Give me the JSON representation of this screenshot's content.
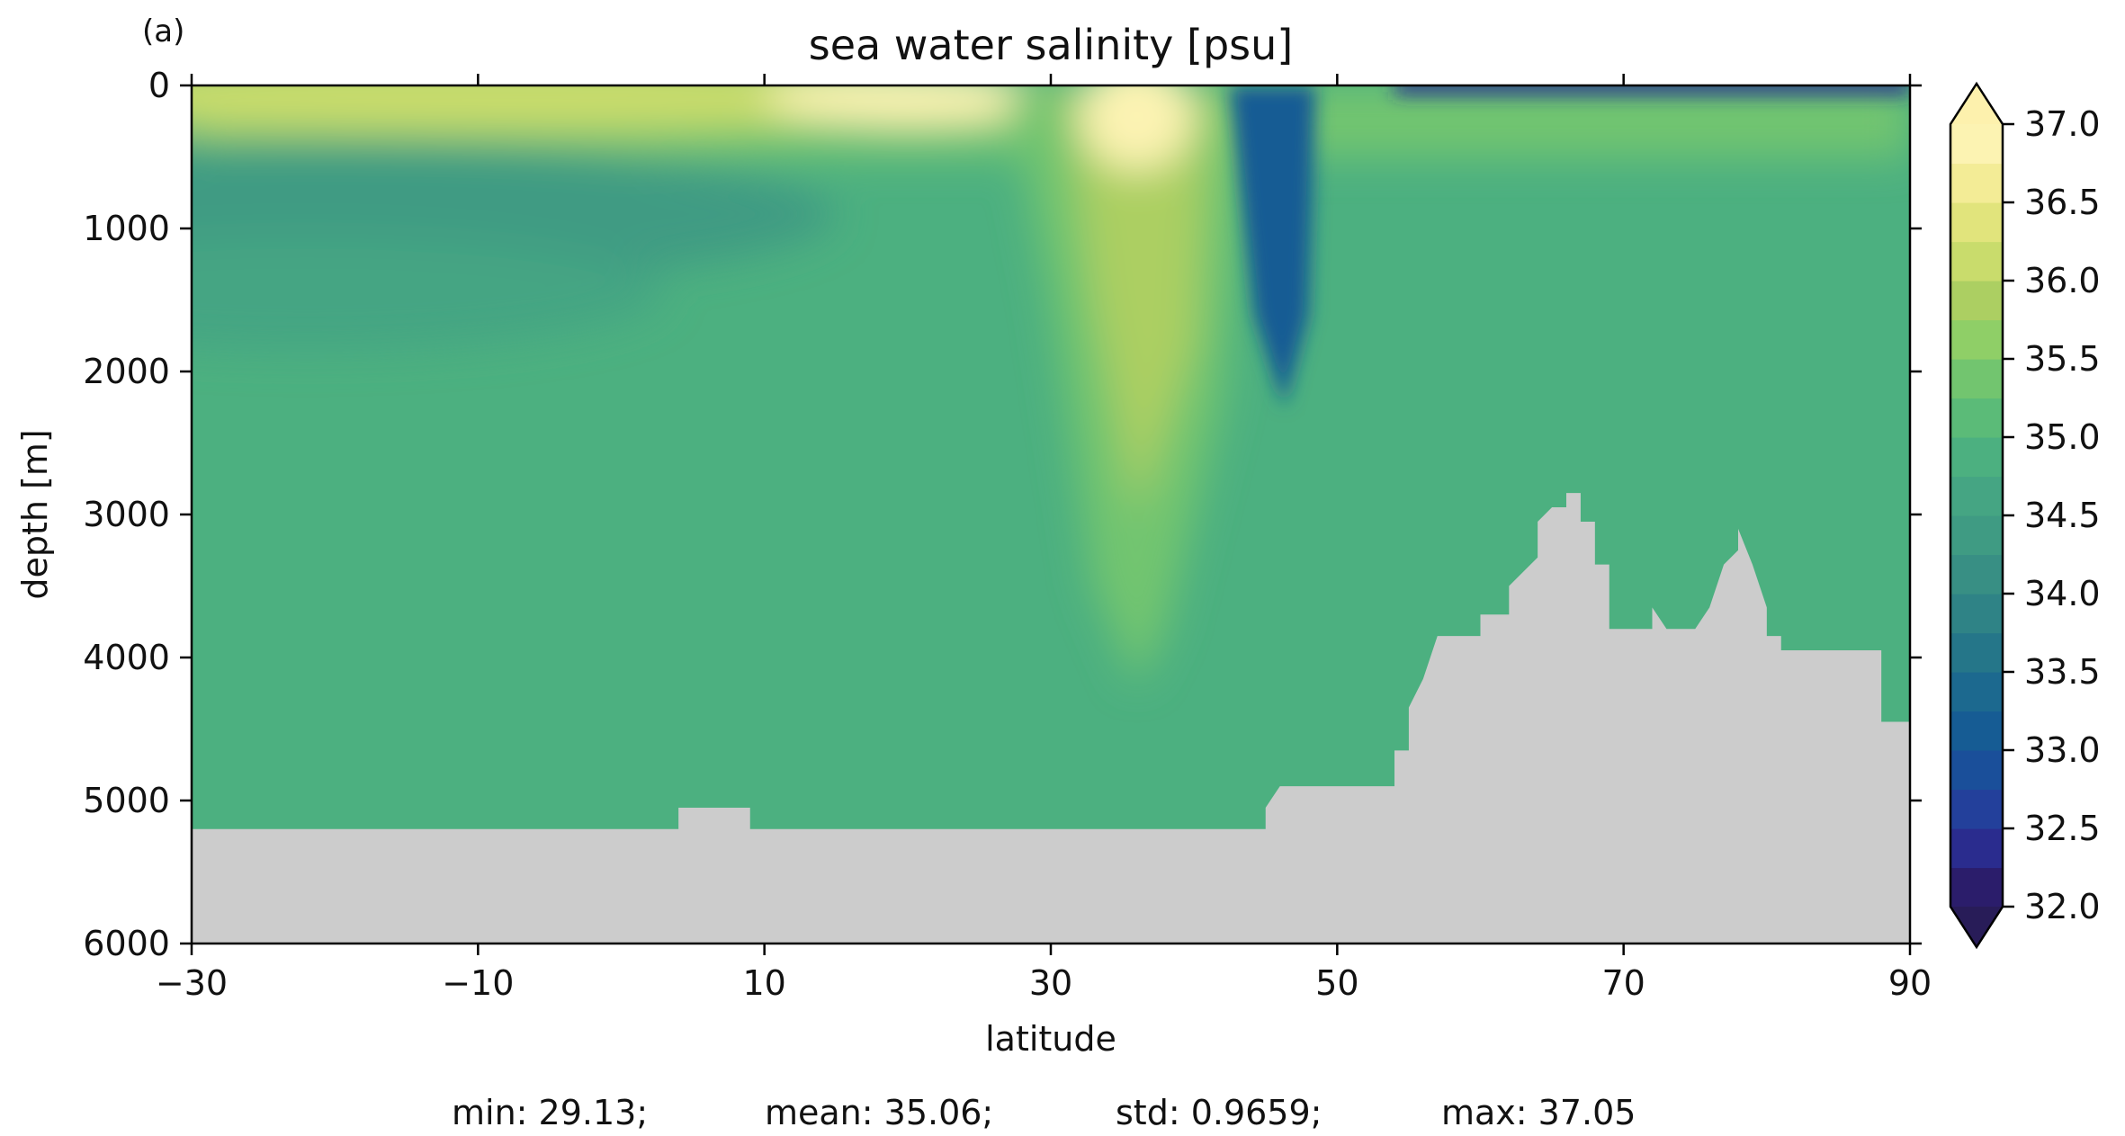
{
  "panel_label": "(a)",
  "stats": {
    "min": "min: 29.13;",
    "mean": "mean: 35.06;",
    "std": "std: 0.9659;",
    "max": "max: 37.05"
  },
  "chart_data": {
    "type": "heatmap",
    "title": "sea water salinity [psu]",
    "xlabel": "latitude",
    "ylabel": "depth [m]",
    "xlim": [
      -30,
      90
    ],
    "ylim": [
      0,
      6000
    ],
    "y_inverted": true,
    "x_ticks": [
      -30,
      -10,
      10,
      30,
      50,
      70,
      90
    ],
    "x_tick_labels": [
      "−30",
      "−10",
      "10",
      "30",
      "50",
      "70",
      "90"
    ],
    "y_ticks": [
      0,
      1000,
      2000,
      3000,
      4000,
      5000,
      6000
    ],
    "y_tick_labels": [
      "0",
      "1000",
      "2000",
      "3000",
      "4000",
      "5000",
      "6000"
    ],
    "colorbar": {
      "min": 32.0,
      "max": 37.0,
      "step": 0.25,
      "extend": "both",
      "ticks": [
        32.0,
        32.5,
        33.0,
        33.5,
        34.0,
        34.5,
        35.0,
        35.5,
        36.0,
        36.5,
        37.0
      ],
      "tick_labels": [
        "32.0",
        "32.5",
        "33.0",
        "33.5",
        "34.0",
        "34.5",
        "35.0",
        "35.5",
        "36.0",
        "36.5",
        "37.0"
      ],
      "colors": [
        "#2b1d6b",
        "#2a2c8e",
        "#23409b",
        "#1a4f9a",
        "#165c94",
        "#1c698f",
        "#257689",
        "#2f8386",
        "#388f84",
        "#3f9b83",
        "#45a583",
        "#4cb080",
        "#5bbb78",
        "#72c56f",
        "#8fcf67",
        "#accf62",
        "#c9dc6c",
        "#e1e47c",
        "#f3ec96",
        "#fcf3b2"
      ],
      "under_color": "#281c58",
      "over_color": "#fdf1ad"
    },
    "land_color": "#cccccc",
    "bathymetry": [
      [
        -30,
        5200
      ],
      [
        -10,
        5200
      ],
      [
        4,
        5200
      ],
      [
        4,
        5050
      ],
      [
        9,
        5050
      ],
      [
        9,
        5200
      ],
      [
        45,
        5200
      ],
      [
        45,
        5050
      ],
      [
        46,
        4900
      ],
      [
        54,
        4900
      ],
      [
        54,
        4650
      ],
      [
        55,
        4650
      ],
      [
        55,
        4350
      ],
      [
        56,
        4150
      ],
      [
        57,
        3850
      ],
      [
        60,
        3850
      ],
      [
        60,
        3700
      ],
      [
        62,
        3700
      ],
      [
        62,
        3500
      ],
      [
        64,
        3300
      ],
      [
        64,
        3050
      ],
      [
        65,
        2950
      ],
      [
        66,
        2950
      ],
      [
        66,
        2850
      ],
      [
        67,
        2850
      ],
      [
        67,
        3050
      ],
      [
        68,
        3050
      ],
      [
        68,
        3350
      ],
      [
        69,
        3350
      ],
      [
        69,
        3800
      ],
      [
        72,
        3800
      ],
      [
        72,
        3650
      ],
      [
        73,
        3800
      ],
      [
        75,
        3800
      ],
      [
        76,
        3650
      ],
      [
        77,
        3350
      ],
      [
        78,
        3250
      ],
      [
        78,
        3100
      ],
      [
        79,
        3350
      ],
      [
        80,
        3650
      ],
      [
        80,
        3850
      ],
      [
        81,
        3850
      ],
      [
        81,
        3950
      ],
      [
        88,
        3950
      ],
      [
        88,
        4650
      ],
      [
        88,
        4450
      ],
      [
        90,
        4450
      ],
      [
        90,
        4350
      ]
    ],
    "fields": [
      {
        "name": "upper-subtropical-layer",
        "value_psu": 36.0,
        "lat_range": [
          -30,
          20
        ],
        "depth_range": [
          0,
          300
        ]
      },
      {
        "name": "intermediate-water",
        "value_psu": 34.4,
        "lat_range": [
          -30,
          5
        ],
        "depth_range": [
          500,
          1300
        ]
      },
      {
        "name": "deep-water",
        "value_psu": 34.9,
        "lat_range": [
          -30,
          90
        ],
        "depth_range": [
          1800,
          5200
        ]
      },
      {
        "name": "mediterranean-outflow-tongue",
        "value_psu": 35.9,
        "lat_range": [
          30,
          45
        ],
        "depth_range": [
          0,
          4200
        ]
      },
      {
        "name": "fresh-column",
        "value_psu": 33.0,
        "lat_range": [
          46,
          49
        ],
        "depth_range": [
          0,
          2200
        ]
      },
      {
        "name": "fresh-arctic-surface",
        "value_psu": 32.3,
        "lat_range": [
          54,
          90
        ],
        "depth_range": [
          0,
          100
        ]
      }
    ]
  }
}
